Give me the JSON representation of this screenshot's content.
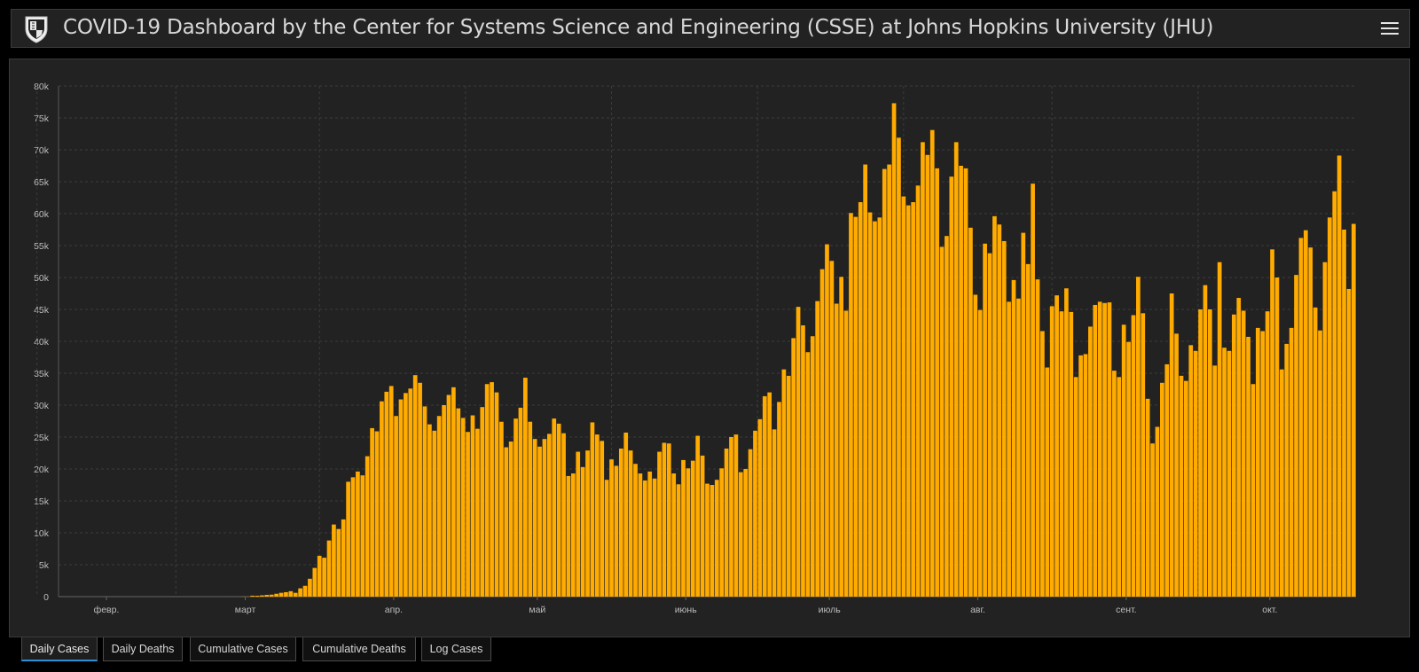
{
  "header": {
    "title": "COVID-19 Dashboard by the Center for Systems Science and Engineering (CSSE) at Johns Hopkins University (JHU)",
    "logo_icon": "jhu-shield-icon",
    "menu_icon": "hamburger-menu-icon"
  },
  "tabs": [
    {
      "label": "Daily Cases",
      "active": true
    },
    {
      "label": "Daily Deaths",
      "active": false
    },
    {
      "label": "Cumulative Cases",
      "active": false
    },
    {
      "label": "Cumulative Deaths",
      "active": false
    },
    {
      "label": "Log Cases",
      "active": false
    }
  ],
  "colors": {
    "bar": "#ffab00",
    "background": "#222222",
    "page": "#000000",
    "grid": "#3c3c3c",
    "axis_text": "#bdbdbd",
    "active_tab_underline": "#2f8fd8"
  },
  "chart_data": {
    "type": "bar",
    "title": "",
    "xlabel": "",
    "ylabel": "",
    "ylim": [
      0,
      80000
    ],
    "yticks": [
      0,
      5000,
      10000,
      15000,
      20000,
      25000,
      30000,
      35000,
      40000,
      45000,
      50000,
      55000,
      60000,
      65000,
      70000,
      75000,
      80000
    ],
    "ytick_labels": [
      "0",
      "5k",
      "10k",
      "15k",
      "20k",
      "25k",
      "30k",
      "35k",
      "40k",
      "45k",
      "50k",
      "55k",
      "60k",
      "65k",
      "70k",
      "75k",
      "80k"
    ],
    "x_start": "2020-01-22",
    "x_end": "2020-10-08",
    "x_month_labels": [
      {
        "date": "2020-02-01",
        "label": "февр."
      },
      {
        "date": "2020-03-01",
        "label": "март"
      },
      {
        "date": "2020-04-01",
        "label": "апр."
      },
      {
        "date": "2020-05-01",
        "label": "май"
      },
      {
        "date": "2020-06-01",
        "label": "июнь"
      },
      {
        "date": "2020-07-01",
        "label": "июль"
      },
      {
        "date": "2020-08-01",
        "label": "авг."
      },
      {
        "date": "2020-09-01",
        "label": "сент."
      },
      {
        "date": "2020-10-01",
        "label": "окт."
      }
    ],
    "grid": true,
    "legend": "none",
    "series": [
      {
        "values": [
          1,
          0,
          1,
          0,
          3,
          0,
          0,
          0,
          0,
          2,
          1,
          0,
          3,
          0,
          0,
          0,
          0,
          0,
          0,
          0,
          0,
          0,
          0,
          0,
          0,
          0,
          0,
          0,
          0,
          0,
          0,
          0,
          0,
          0,
          0,
          3,
          0,
          6,
          18,
          12,
          150,
          140,
          200,
          280,
          310,
          450,
          600,
          700,
          850,
          600,
          1300,
          1700,
          2800,
          4500,
          6400,
          6100,
          8800,
          11300,
          10600,
          12100,
          18000,
          18700,
          19600,
          19000,
          22000,
          26400,
          25900,
          30600,
          32100,
          33000,
          28300,
          30900,
          31900,
          32600,
          34700,
          33500,
          29800,
          27000,
          26000,
          28300,
          30000,
          31600,
          32800,
          29500,
          28000,
          25800,
          28400,
          26300,
          29700,
          33300,
          33600,
          32000,
          27400,
          23400,
          24300,
          27900,
          29600,
          34300,
          27400,
          24700,
          23500,
          24700,
          25500,
          27900,
          27100,
          25600,
          18900,
          19300,
          22700,
          20300,
          22900,
          27300,
          25400,
          24400,
          18300,
          21500,
          20500,
          23200,
          25700,
          22900,
          20800,
          19300,
          18200,
          19600,
          18500,
          22700,
          24100,
          24000,
          19300,
          17600,
          21400,
          20100,
          21300,
          25200,
          22100,
          17700,
          17500,
          18300,
          20100,
          23200,
          25000,
          25400,
          19500,
          20000,
          23100,
          26000,
          27800,
          31400,
          32000,
          26200,
          30500,
          35600,
          34600,
          40500,
          45400,
          42500,
          38300,
          40800,
          46300,
          51300,
          55200,
          52600,
          45900,
          50100,
          44800,
          60100,
          59500,
          61800,
          67700,
          60200,
          58800,
          59400,
          67000,
          67700,
          77300,
          71900,
          62700,
          61300,
          61800,
          64400,
          71200,
          69200,
          73100,
          67100,
          54800,
          56500,
          65800,
          71200,
          67500,
          67100,
          57800,
          47300,
          44900,
          55300,
          53800,
          59600,
          58300,
          55700,
          46200,
          49600,
          46700,
          57000,
          52100,
          64700,
          49700,
          41600,
          35900,
          45500,
          47200,
          44700,
          48300,
          44600,
          34400,
          37800,
          38000,
          42300,
          45700,
          46200,
          46000,
          46100,
          35400,
          34400,
          42600,
          39900,
          44100,
          50100,
          44400,
          31000,
          24000,
          26600,
          33500,
          36400,
          47500,
          41200,
          34600,
          33800,
          39400,
          38500,
          45000,
          48800,
          45000,
          36200,
          52400,
          39000,
          38500,
          44200,
          46800,
          44800,
          40700,
          33300,
          42100,
          41600,
          44700,
          54400,
          50000,
          35600,
          39600,
          42100,
          50400,
          56200,
          57400,
          54700,
          45300,
          41700,
          52400,
          59400,
          63500,
          69100,
          57500,
          48200,
          58400
        ]
      }
    ]
  }
}
